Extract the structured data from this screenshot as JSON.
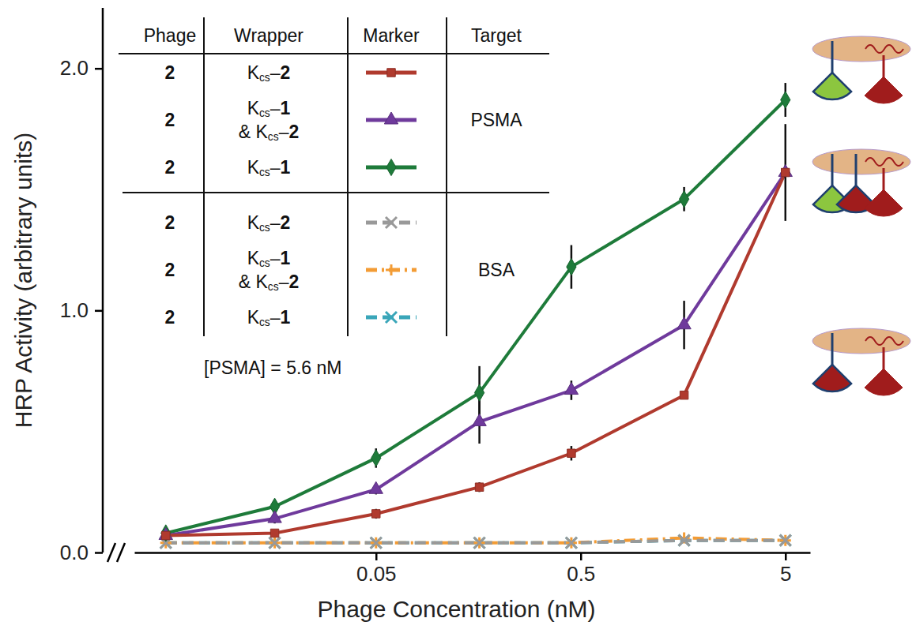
{
  "chart_data": {
    "type": "line",
    "x": [
      0.0047,
      0.016,
      0.05,
      0.16,
      0.45,
      1.6,
      5
    ],
    "xlim": [
      0.0033,
      6.6
    ],
    "xticks": [
      0.05,
      0.5,
      5
    ],
    "ylim": [
      0,
      2.25
    ],
    "yticks": [
      {
        "value": 0,
        "label": "0.0"
      },
      {
        "value": 1,
        "label": "1.0"
      },
      {
        "value": 2,
        "label": "2.0"
      }
    ],
    "log": "x",
    "x_label": "Phage Concentration (nM)",
    "y_label": "HRP Activity (arbitrary units)",
    "legend": "upper left",
    "legend_headers": [
      "Phage",
      "Wrapper",
      "Marker",
      "Target"
    ],
    "annotations": [
      "[PSMA] = 5.6 nM"
    ],
    "series": [
      {
        "name": "Kcs–2",
        "phage": "2",
        "target": "PSMA",
        "color": "#b03a2e",
        "marker": "square",
        "line_style": "solid",
        "values": [
          0.07,
          0.08,
          0.16,
          0.27,
          0.41,
          0.65,
          1.57
        ],
        "errors": [
          0.02,
          0.01,
          0.02,
          0.02,
          0.03,
          0.01,
          0.2
        ]
      },
      {
        "name": "Kcs–1 & Kcs–2",
        "phage": "2",
        "target": "PSMA",
        "color": "#6f3a9c",
        "marker": "triangle",
        "line_style": "solid",
        "values": [
          0.07,
          0.14,
          0.26,
          0.54,
          0.67,
          0.94,
          1.57
        ],
        "errors": [
          0.01,
          0.02,
          0.02,
          0.09,
          0.04,
          0.1,
          0.02
        ]
      },
      {
        "name": "Kcs–1",
        "phage": "2",
        "target": "PSMA",
        "color": "#1e7b3a",
        "marker": "diamond",
        "line_style": "solid",
        "values": [
          0.08,
          0.19,
          0.39,
          0.66,
          1.18,
          1.46,
          1.87
        ],
        "errors": [
          0.01,
          0.02,
          0.04,
          0.11,
          0.09,
          0.05,
          0.07
        ]
      },
      {
        "name": "Kcs–2",
        "phage": "2",
        "target": "BSA",
        "color": "#999999",
        "marker": "x",
        "line_style": "dashed",
        "values": [
          0.04,
          0.04,
          0.04,
          0.04,
          0.04,
          0.05,
          0.05
        ]
      },
      {
        "name": "Kcs–1 & Kcs–2",
        "phage": "2",
        "target": "BSA",
        "color": "#f39c35",
        "marker": "plus",
        "line_style": "dashdot",
        "values": [
          0.04,
          0.04,
          0.04,
          0.04,
          0.04,
          0.06,
          0.05
        ]
      },
      {
        "name": "Kcs–1",
        "phage": "2",
        "target": "BSA",
        "color": "#3aa6b9",
        "marker": "x",
        "line_style": "dashed",
        "values": [
          0.04,
          0.04,
          0.04,
          0.04,
          0.04,
          0.05,
          0.05
        ]
      }
    ]
  }
}
